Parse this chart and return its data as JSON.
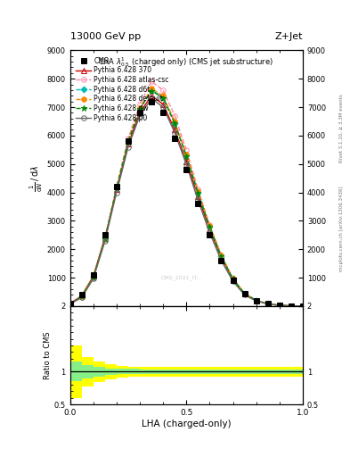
{
  "title_top": "13000 GeV pp",
  "title_right": "Z+Jet",
  "plot_title": "LHA $\\lambda^{1}_{0.5}$ (charged only) (CMS jet substructure)",
  "xlabel": "LHA (charged-only)",
  "right_label_top": "Rivet 3.1.10, ≥ 3.3M events",
  "right_label_bot": "mcplots.cern.ch [arXiv:1306.3436]",
  "watermark": "CMS_2021_IT...",
  "xlim": [
    0.0,
    1.0
  ],
  "ylim_main": [
    0,
    9000
  ],
  "ylim_ratio": [
    0.5,
    2.0
  ],
  "lha_x": [
    0.0,
    0.05,
    0.1,
    0.15,
    0.2,
    0.25,
    0.3,
    0.35,
    0.4,
    0.45,
    0.5,
    0.55,
    0.6,
    0.65,
    0.7,
    0.75,
    0.8,
    0.85,
    0.9,
    0.95,
    1.0
  ],
  "cms_data": [
    100,
    400,
    1100,
    2500,
    4200,
    5800,
    6800,
    7200,
    6800,
    5900,
    4800,
    3600,
    2500,
    1600,
    900,
    430,
    200,
    80,
    28,
    7,
    1
  ],
  "py370_y": [
    90,
    360,
    1050,
    2400,
    4100,
    5700,
    6800,
    7400,
    7100,
    6200,
    5100,
    3850,
    2700,
    1700,
    930,
    430,
    195,
    78,
    26,
    6,
    1
  ],
  "py_atlas_y": [
    75,
    320,
    1000,
    2350,
    4200,
    5900,
    7100,
    7900,
    7600,
    6700,
    5500,
    4100,
    2850,
    1800,
    980,
    445,
    200,
    80,
    27,
    6,
    1
  ],
  "py_d6t_y": [
    80,
    340,
    1020,
    2370,
    4150,
    5800,
    6950,
    7600,
    7350,
    6450,
    5300,
    4000,
    2800,
    1750,
    960,
    440,
    198,
    79,
    27,
    6,
    1
  ],
  "py_default_y": [
    82,
    345,
    1030,
    2380,
    4160,
    5820,
    6980,
    7650,
    7400,
    6500,
    5350,
    4050,
    2830,
    1780,
    970,
    445,
    200,
    80,
    27,
    6,
    1
  ],
  "py_dw_y": [
    78,
    335,
    1010,
    2360,
    4130,
    5780,
    6930,
    7580,
    7320,
    6420,
    5270,
    3970,
    2780,
    1740,
    955,
    438,
    197,
    79,
    26,
    6,
    1
  ],
  "py_p0_y": [
    65,
    300,
    960,
    2280,
    4000,
    5600,
    6700,
    7300,
    7000,
    6100,
    4980,
    3720,
    2580,
    1600,
    870,
    390,
    175,
    70,
    24,
    5,
    1
  ],
  "series": [
    {
      "label": "CMS",
      "color": "black",
      "marker": "s",
      "ms": 4,
      "ls": "none",
      "lw": 1.2,
      "mfc": "black"
    },
    {
      "label": "Pythia 6.428 370",
      "color": "#cc0000",
      "marker": "^",
      "ms": 4,
      "ls": "-",
      "lw": 1.0,
      "mfc": "none"
    },
    {
      "label": "Pythia 6.428 atlas-csc",
      "color": "#ff88aa",
      "marker": "o",
      "ms": 4,
      "ls": "--",
      "lw": 1.0,
      "mfc": "none"
    },
    {
      "label": "Pythia 6.428 d6t",
      "color": "#00bbbb",
      "marker": "D",
      "ms": 3.5,
      "ls": "--",
      "lw": 1.0,
      "mfc": "#00bbbb"
    },
    {
      "label": "Pythia 6.428 default",
      "color": "#ff8800",
      "marker": "o",
      "ms": 4,
      "ls": "--",
      "lw": 1.0,
      "mfc": "#ff8800"
    },
    {
      "label": "Pythia 6.428 dw",
      "color": "#008800",
      "marker": "*",
      "ms": 5,
      "ls": "--",
      "lw": 1.0,
      "mfc": "#008800"
    },
    {
      "label": "Pythia 6.428 p0",
      "color": "#666666",
      "marker": "o",
      "ms": 4,
      "ls": "-",
      "lw": 1.0,
      "mfc": "none"
    }
  ],
  "ratio_green_lo": [
    0.85,
    0.9,
    0.93,
    0.95,
    0.96,
    0.96,
    0.97,
    0.97,
    0.97,
    0.97,
    0.97,
    0.97,
    0.97,
    0.97,
    0.97,
    0.97,
    0.97,
    0.97,
    0.97,
    0.97,
    0.97
  ],
  "ratio_green_hi": [
    1.15,
    1.1,
    1.07,
    1.05,
    1.04,
    1.04,
    1.03,
    1.03,
    1.03,
    1.03,
    1.03,
    1.03,
    1.03,
    1.03,
    1.03,
    1.03,
    1.03,
    1.03,
    1.03,
    1.03,
    1.03
  ],
  "ratio_yellow_lo": [
    0.6,
    0.78,
    0.84,
    0.88,
    0.91,
    0.92,
    0.93,
    0.93,
    0.93,
    0.93,
    0.93,
    0.93,
    0.93,
    0.93,
    0.93,
    0.93,
    0.93,
    0.93,
    0.93,
    0.93,
    0.88
  ],
  "ratio_yellow_hi": [
    1.4,
    1.22,
    1.16,
    1.12,
    1.09,
    1.08,
    1.07,
    1.07,
    1.07,
    1.07,
    1.07,
    1.07,
    1.07,
    1.07,
    1.07,
    1.07,
    1.07,
    1.07,
    1.07,
    1.07,
    1.12
  ]
}
